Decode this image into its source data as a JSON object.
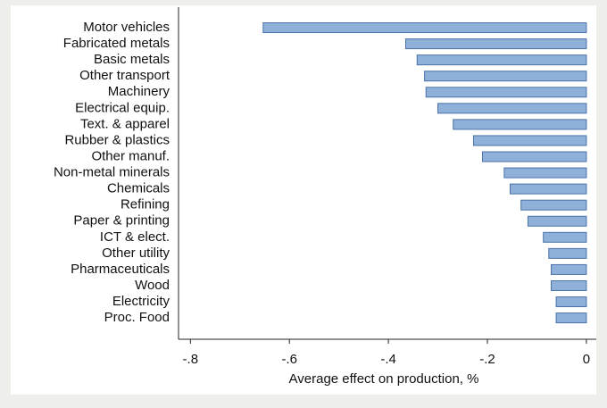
{
  "chart_data": {
    "type": "barh",
    "x_label": "Average effect on production, %",
    "categories": [
      "Motor vehicles",
      "Fabricated metals",
      "Basic metals",
      "Other transport",
      "Machinery",
      "Electrical equip.",
      "Text. & apparel",
      "Rubber & plastics",
      "Other manuf.",
      "Non-metal minerals",
      "Chemicals",
      "Refining",
      "Paper & printing",
      "ICT & elect.",
      "Other utility",
      "Pharmaceuticals",
      "Wood",
      "Electricity",
      "Proc. Food"
    ],
    "values": [
      -0.653,
      -0.365,
      -0.342,
      -0.327,
      -0.324,
      -0.3,
      -0.269,
      -0.228,
      -0.21,
      -0.166,
      -0.154,
      -0.132,
      -0.118,
      -0.087,
      -0.076,
      -0.071,
      -0.071,
      -0.061,
      -0.061
    ],
    "color": "#8fb0d8",
    "xlim": [
      -0.824,
      0.02
    ],
    "xticks": [
      {
        "value": -0.8,
        "label": "-.8"
      },
      {
        "value": -0.6,
        "label": "-.6"
      },
      {
        "value": -0.4,
        "label": "-.4"
      },
      {
        "value": -0.2,
        "label": "-.2"
      },
      0
    ]
  }
}
